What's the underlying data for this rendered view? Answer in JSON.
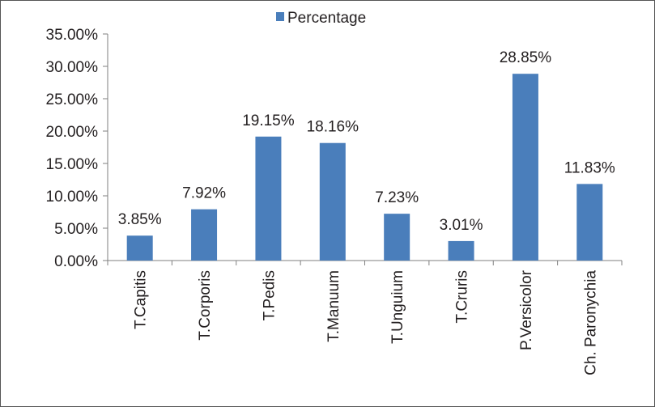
{
  "chart_data": {
    "type": "bar",
    "categories": [
      "T.Capitis",
      "T.Corporis",
      "T.Pedis",
      "T.Manuum",
      "T.Unguium",
      "T.Cruris",
      "P.Versicolor",
      "Ch. Paronychia"
    ],
    "series": [
      {
        "name": "Percentage",
        "values": [
          3.85,
          7.92,
          19.15,
          18.16,
          7.23,
          3.01,
          28.85,
          11.83
        ],
        "value_labels": [
          "3.85%",
          "7.92%",
          "19.15%",
          "18.16%",
          "7.23%",
          "3.01%",
          "28.85%",
          "11.83%"
        ]
      }
    ],
    "ylim": [
      0,
      35
    ],
    "yticks": [
      0,
      5,
      10,
      15,
      20,
      25,
      30,
      35
    ],
    "ytick_labels": [
      "0.00%",
      "5.00%",
      "10.00%",
      "15.00%",
      "20.00%",
      "25.00%",
      "30.00%",
      "35.00%"
    ],
    "grid": false,
    "legend_position": "top-center",
    "bar_color": "#4a7ebb",
    "axis_color": "#7f7f7f"
  }
}
